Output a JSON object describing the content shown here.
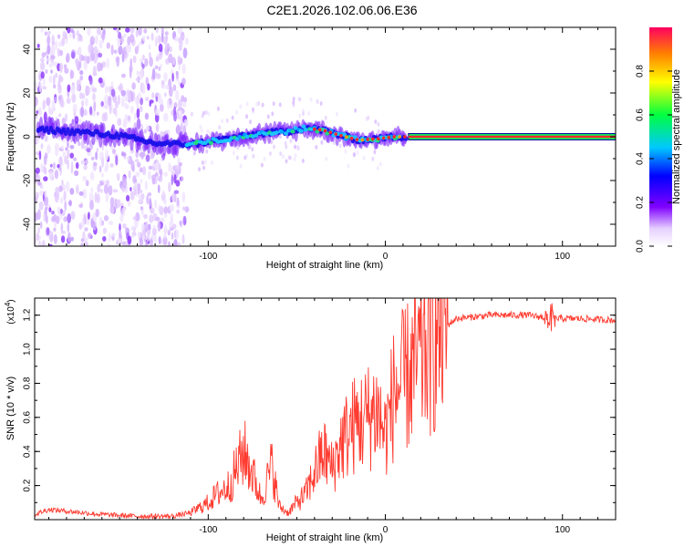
{
  "title": "C2E1.2026.102.06.06.E36",
  "chart_data": [
    {
      "type": "heatmap",
      "name": "spectrogram",
      "xlabel": "Height of straight line (km)",
      "ylabel": "Frequency (Hz)",
      "xlim": [
        -198,
        130
      ],
      "ylim": [
        -50,
        50
      ],
      "x_ticks": [
        -100,
        0,
        100
      ],
      "y_ticks": [
        -40,
        -20,
        0,
        20,
        40
      ],
      "colorbar": {
        "label": "Normalized spectral amplitude",
        "range": [
          0,
          1
        ],
        "ticks": [
          0.0,
          0.2,
          0.4,
          0.6,
          0.8
        ]
      },
      "features": {
        "noise_region_km": [
          -198,
          -112
        ],
        "trace_points": [
          {
            "x": -190,
            "y": 3.0
          },
          {
            "x": -170,
            "y": 2.0
          },
          {
            "x": -150,
            "y": 0.5
          },
          {
            "x": -130,
            "y": -3.0
          },
          {
            "x": -110,
            "y": -3.5
          },
          {
            "x": -90,
            "y": -1.0
          },
          {
            "x": -70,
            "y": 1.5
          },
          {
            "x": -55,
            "y": 2.5
          },
          {
            "x": -45,
            "y": 4.0
          },
          {
            "x": -35,
            "y": 3.0
          },
          {
            "x": -25,
            "y": 0.5
          },
          {
            "x": -15,
            "y": -1.5
          },
          {
            "x": -5,
            "y": -1.0
          },
          {
            "x": 5,
            "y": 0.0
          },
          {
            "x": 13,
            "y": 0.0
          }
        ],
        "steady_line": {
          "x_start": 13,
          "x_end": 130,
          "y": 0
        }
      }
    },
    {
      "type": "line",
      "name": "snr",
      "xlabel": "Height of straight line (km)",
      "ylabel": "SNR (10 * v/v)",
      "y_multiplier": "(x10",
      "y_multiplier_exp": "4",
      "y_multiplier_close": ")",
      "xlim": [
        -198,
        130
      ],
      "ylim": [
        0,
        1.3
      ],
      "x_ticks": [
        -100,
        0,
        100
      ],
      "y_ticks": [
        0.2,
        0.4,
        0.6,
        0.8,
        1.0,
        1.2
      ],
      "color": "#ff3b30",
      "series": [
        {
          "name": "SNR",
          "envelope": [
            {
              "x": -198,
              "y": 0.03
            },
            {
              "x": -190,
              "y": 0.06
            },
            {
              "x": -180,
              "y": 0.05
            },
            {
              "x": -160,
              "y": 0.03
            },
            {
              "x": -140,
              "y": 0.02
            },
            {
              "x": -120,
              "y": 0.02
            },
            {
              "x": -110,
              "y": 0.04
            },
            {
              "x": -100,
              "y": 0.1
            },
            {
              "x": -95,
              "y": 0.15
            },
            {
              "x": -88,
              "y": 0.2
            },
            {
              "x": -80,
              "y": 0.4
            },
            {
              "x": -76,
              "y": 0.3
            },
            {
              "x": -70,
              "y": 0.12
            },
            {
              "x": -64,
              "y": 0.32
            },
            {
              "x": -60,
              "y": 0.08
            },
            {
              "x": -55,
              "y": 0.04
            },
            {
              "x": -50,
              "y": 0.1
            },
            {
              "x": -45,
              "y": 0.15
            },
            {
              "x": -40,
              "y": 0.28
            },
            {
              "x": -35,
              "y": 0.4
            },
            {
              "x": -30,
              "y": 0.3
            },
            {
              "x": -25,
              "y": 0.45
            },
            {
              "x": -18,
              "y": 0.55
            },
            {
              "x": -10,
              "y": 0.6
            },
            {
              "x": -5,
              "y": 0.65
            },
            {
              "x": 0,
              "y": 0.5
            },
            {
              "x": 5,
              "y": 0.75
            },
            {
              "x": 10,
              "y": 0.8
            },
            {
              "x": 20,
              "y": 0.95
            },
            {
              "x": 30,
              "y": 1.1
            },
            {
              "x": 40,
              "y": 1.18
            },
            {
              "x": 60,
              "y": 1.2
            },
            {
              "x": 80,
              "y": 1.2
            },
            {
              "x": 95,
              "y": 1.18
            },
            {
              "x": 110,
              "y": 1.18
            },
            {
              "x": 130,
              "y": 1.17
            }
          ]
        }
      ]
    }
  ]
}
